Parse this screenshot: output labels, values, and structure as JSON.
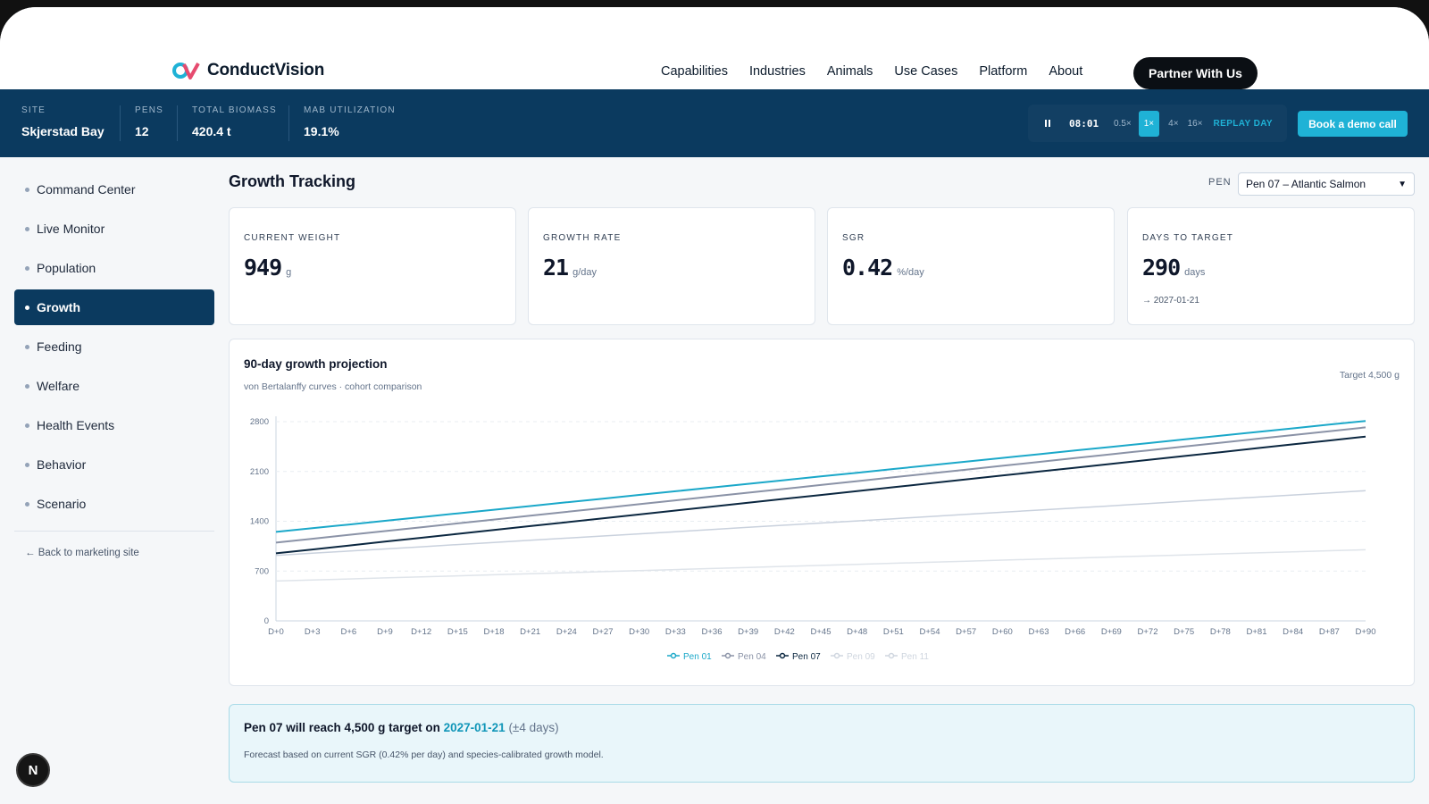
{
  "brand": {
    "name": "ConductVision",
    "colors": {
      "navy": "#0b3a5f",
      "accent": "#1fb2d6",
      "dark": "#0b0f14"
    }
  },
  "nav": {
    "items": [
      "Capabilities",
      "Industries",
      "Animals",
      "Use Cases",
      "Platform",
      "About"
    ],
    "cta": "Partner With Us"
  },
  "stats": [
    {
      "label": "SITE",
      "value": "Skjerstad Bay"
    },
    {
      "label": "PENS",
      "value": "12"
    },
    {
      "label": "TOTAL BIOMASS",
      "value": "420.4 t"
    },
    {
      "label": "MAB UTILIZATION",
      "value": "19.1%"
    }
  ],
  "player": {
    "time": "08:01",
    "speeds": [
      "0.5×",
      "1×",
      "4×",
      "16×"
    ],
    "active_speed": "1×",
    "replay": "REPLAY DAY",
    "pause_icon": "pause-icon"
  },
  "demo_button": "Book a demo call",
  "sidebar": {
    "items": [
      "Command Center",
      "Live Monitor",
      "Population",
      "Growth",
      "Feeding",
      "Welfare",
      "Health Events",
      "Behavior",
      "Scenario"
    ],
    "active": "Growth",
    "back": "← Back to marketing site"
  },
  "badge": "N",
  "main": {
    "title": "Growth Tracking",
    "pen_label": "PEN",
    "pen_selected": "Pen 07 – Atlantic Salmon"
  },
  "cards": [
    {
      "label": "CURRENT WEIGHT",
      "value": "949",
      "unit": "g",
      "sub": ""
    },
    {
      "label": "GROWTH RATE",
      "value": "21",
      "unit": "g/day",
      "sub": ""
    },
    {
      "label": "SGR",
      "value": "0.42",
      "unit": "%/day",
      "sub": ""
    },
    {
      "label": "DAYS TO TARGET",
      "value": "290",
      "unit": "days",
      "sub": "→ 2027-01-21"
    }
  ],
  "chart_card": {
    "title": "90-day growth projection",
    "subtitle": "von Bertalanffy curves · cohort comparison",
    "target_note": "Target 4,500 g"
  },
  "chart_data": {
    "type": "line",
    "x": [
      "D+0",
      "D+3",
      "D+6",
      "D+9",
      "D+12",
      "D+15",
      "D+18",
      "D+21",
      "D+24",
      "D+27",
      "D+30",
      "D+33",
      "D+36",
      "D+39",
      "D+42",
      "D+45",
      "D+48",
      "D+51",
      "D+54",
      "D+57",
      "D+60",
      "D+63",
      "D+66",
      "D+69",
      "D+72",
      "D+75",
      "D+78",
      "D+81",
      "D+84",
      "D+87",
      "D+90"
    ],
    "y_ticks": [
      0,
      700,
      1400,
      2100,
      2800
    ],
    "ylim": [
      0,
      2800
    ],
    "grid": true,
    "legend_position": "bottom",
    "series": [
      {
        "name": "Pen 01",
        "start": 1250,
        "end": 2810,
        "color": "#1ba8c9",
        "visible": true
      },
      {
        "name": "Pen 04",
        "start": 1100,
        "end": 2720,
        "color": "#8b93a7",
        "visible": true
      },
      {
        "name": "Pen 07",
        "start": 949,
        "end": 2590,
        "color": "#0b2740",
        "visible": true
      },
      {
        "name": "Pen 09",
        "start": 920,
        "end": 1830,
        "color": "#c9d1dd",
        "visible": false
      },
      {
        "name": "Pen 11",
        "start": 560,
        "end": 1000,
        "color": "#dfe4ea",
        "visible": false
      }
    ]
  },
  "forecast": {
    "prefix": "Pen 07 will reach 4,500 g target on",
    "date": "2027-01-21",
    "margin": "(±4 days)",
    "note": "Forecast based on current SGR (0.42% per day) and species-calibrated growth model."
  }
}
